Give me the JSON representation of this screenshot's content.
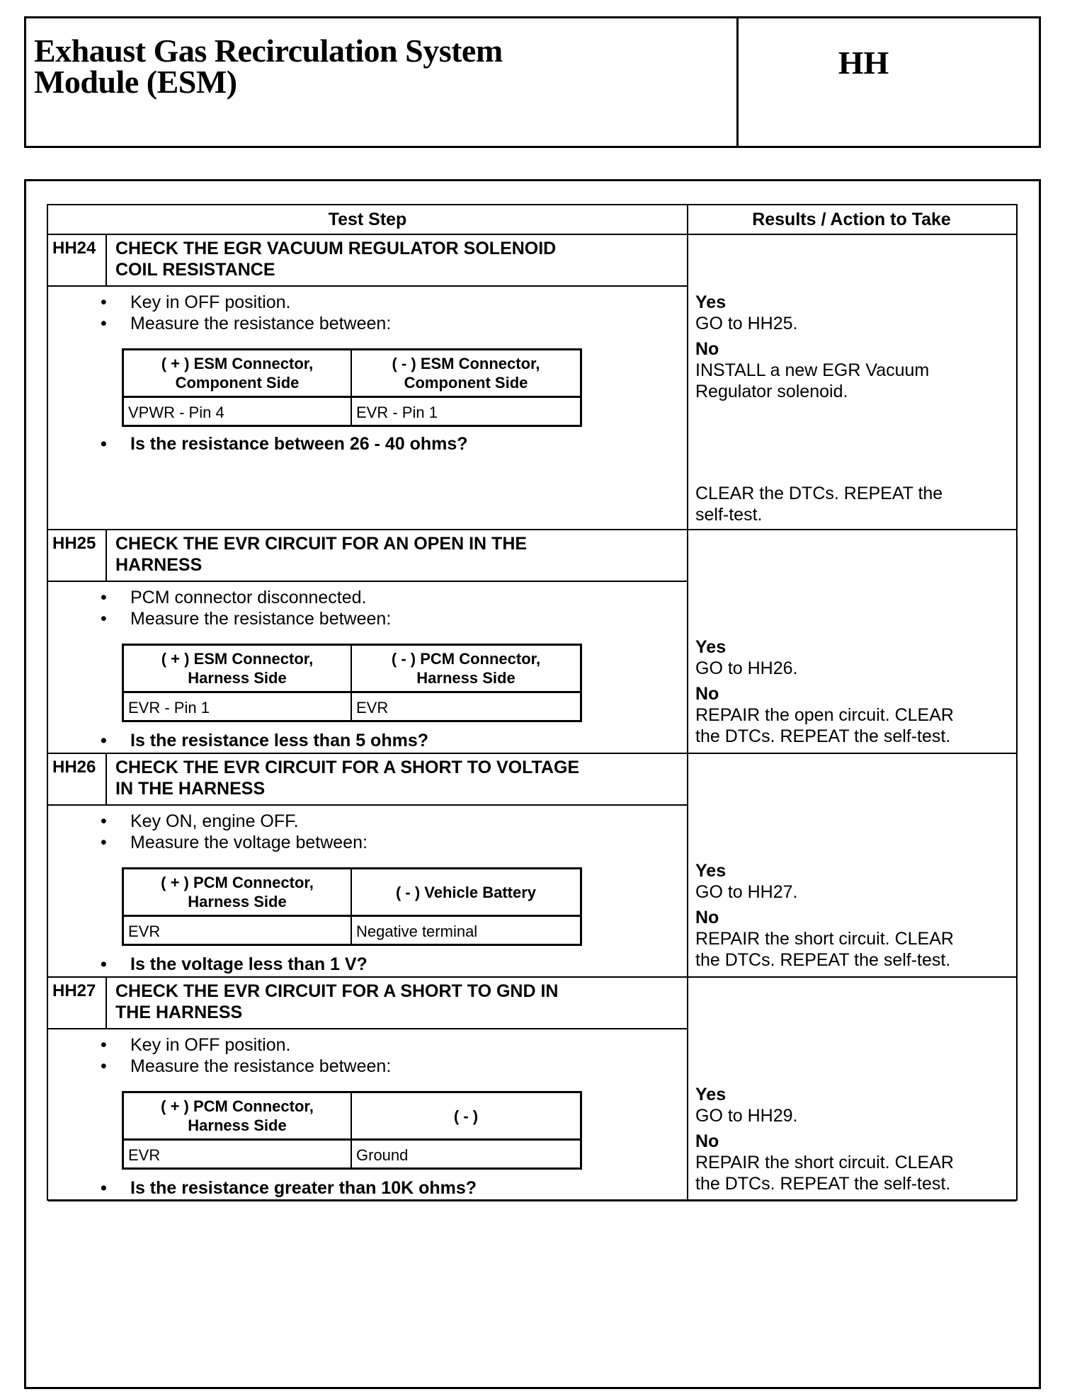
{
  "header": {
    "title_line1": "Exhaust Gas Recirculation System",
    "title_line2": "Module (ESM)",
    "section_code": "HH"
  },
  "table": {
    "col_test_step": "Test Step",
    "col_results": "Results / Action to Take",
    "steps": [
      {
        "id": "HH24",
        "title1": "CHECK THE EGR VACUUM REGULATOR SOLENOID",
        "title2": "COIL RESISTANCE",
        "bullets": [
          "Key in OFF position.",
          "Measure the resistance between:"
        ],
        "meas": {
          "h1a": "( + ) ESM Connector,",
          "h1b": "Component Side",
          "h2a": "( - ) ESM Connector,",
          "h2b": "Component Side",
          "v1": "VPWR - Pin 4",
          "v2": "EVR - Pin 1"
        },
        "question": "Is the resistance between 26 - 40 ohms?",
        "yes": "Yes",
        "yes_action": "GO to  HH25.",
        "no": "No",
        "no_action1": "INSTALL a new EGR Vacuum",
        "no_action2": "Regulator solenoid.",
        "extra1": "CLEAR the DTCs. REPEAT the",
        "extra2": "self-test."
      },
      {
        "id": "HH25",
        "title1": "CHECK THE EVR CIRCUIT FOR AN OPEN IN THE",
        "title2": "HARNESS",
        "bullets": [
          "PCM connector disconnected.",
          "Measure the resistance between:"
        ],
        "meas": {
          "h1a": "( + ) ESM Connector,",
          "h1b": "Harness Side",
          "h2a": "( - ) PCM Connector,",
          "h2b": "Harness Side",
          "v1": "EVR - Pin 1",
          "v2": "EVR"
        },
        "question": "Is the resistance less than 5 ohms?",
        "yes": "Yes",
        "yes_action": "GO to  HH26.",
        "no": "No",
        "no_action1": "REPAIR the open circuit. CLEAR",
        "no_action2": "the DTCs. REPEAT the self-test."
      },
      {
        "id": "HH26",
        "title1": "CHECK THE EVR CIRCUIT FOR A SHORT TO VOLTAGE",
        "title2": "IN THE HARNESS",
        "bullets": [
          "Key ON, engine OFF.",
          "Measure the voltage between:"
        ],
        "meas": {
          "h1a": "( + ) PCM Connector,",
          "h1b": "Harness Side",
          "h2a": "",
          "h2b": "( - ) Vehicle Battery",
          "v1": "EVR",
          "v2": "Negative terminal"
        },
        "question": "Is the voltage less than 1 V?",
        "yes": "Yes",
        "yes_action": "GO to  HH27.",
        "no": "No",
        "no_action1": "REPAIR the short circuit. CLEAR",
        "no_action2": "the DTCs. REPEAT the self-test."
      },
      {
        "id": "HH27",
        "title1": "CHECK THE EVR CIRCUIT FOR A SHORT TO GND IN",
        "title2": "THE HARNESS",
        "bullets": [
          "Key in OFF position.",
          "Measure the resistance between:"
        ],
        "meas": {
          "h1a": "( + ) PCM Connector,",
          "h1b": "Harness Side",
          "h2a": "",
          "h2b": "( - )",
          "v1": "EVR",
          "v2": "Ground"
        },
        "question": "Is the resistance greater than 10K ohms?",
        "yes": "Yes",
        "yes_action": "GO to  HH29.",
        "no": "No",
        "no_action1": "REPAIR the short circuit. CLEAR",
        "no_action2": "the DTCs. REPEAT the self-test."
      }
    ]
  }
}
